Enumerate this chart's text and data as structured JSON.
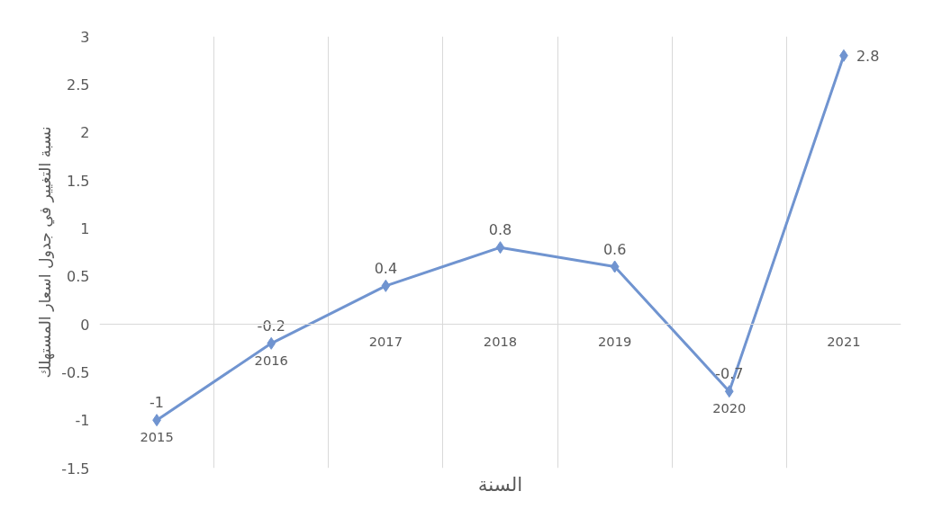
{
  "chart_data": {
    "type": "line",
    "xlabel": "السنة",
    "ylabel": "نسبة التغيير في جدول اسعار المستهلك",
    "categories": [
      "2015",
      "2016",
      "2017",
      "2018",
      "2019",
      "2020",
      "2021"
    ],
    "series": [
      {
        "color": "#7094d0",
        "values": [
          -1,
          -0.2,
          0.4,
          0.8,
          0.6,
          -0.7,
          2.8
        ]
      }
    ],
    "ylim": [
      -1.5,
      3
    ],
    "yticks": [
      -1.5,
      -1,
      -0.5,
      0,
      0.5,
      1,
      1.5,
      2,
      2.5,
      3
    ],
    "grid": "x",
    "marker": "diamond",
    "line_style": "solid",
    "data_labels": true
  }
}
